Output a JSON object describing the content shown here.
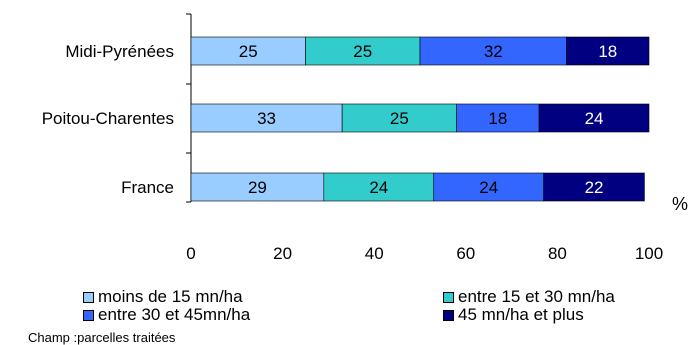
{
  "chart_data": {
    "type": "bar",
    "orientation": "horizontal",
    "stacked": true,
    "categories": [
      "Midi-Pyrénées",
      "Poitou-Charentes",
      "France"
    ],
    "series": [
      {
        "name": "moins de 15 mn/ha",
        "values": [
          25,
          33,
          29
        ],
        "color": "#99ccff"
      },
      {
        "name": "entre 15 et 30 mn/ha",
        "values": [
          25,
          25,
          24
        ],
        "color": "#33cccc"
      },
      {
        "name": "entre 30 et 45mn/ha",
        "values": [
          32,
          18,
          24
        ],
        "color": "#3366ff"
      },
      {
        "name": "45 mn/ha et plus",
        "values": [
          18,
          24,
          22
        ],
        "color": "#000080"
      }
    ],
    "xlim": [
      0,
      100
    ],
    "xticks": [
      "0",
      "20",
      "40",
      "60",
      "80",
      "100"
    ],
    "xunit": "%",
    "grid": false,
    "legend_position": "bottom"
  },
  "note": "Champ :parcelles traitées"
}
